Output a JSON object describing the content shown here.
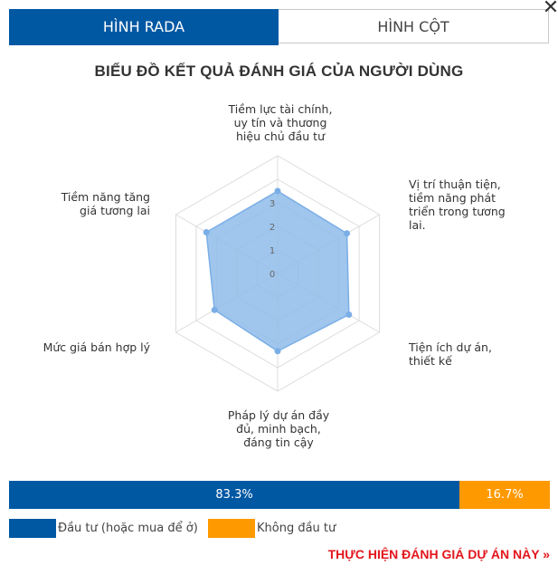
{
  "tabs": [
    {
      "label": "HÌNH RADA",
      "active": true
    },
    {
      "label": "HÌNH CỘT",
      "active": false
    }
  ],
  "close_icon": "close-icon",
  "chart_title": "BIỂU ĐỒ KẾT QUẢ ĐÁNH GIÁ CỦA NGƯỜI DÙNG",
  "chart_data": {
    "type": "radar",
    "title": "BIỂU ĐỒ KẾT QUẢ ĐÁNH GIÁ CỦA NGƯỜI DÙNG",
    "categories": [
      "Tiềm lực tài chính, uy tín và thương hiệu chủ đầu tư",
      "Vị trí thuận tiện, tiềm năng phát triển trong tương lai.",
      "Tiện ích dự án, thiết kế",
      "Pháp lý dự án đầy đủ, minh bạch, đáng tin cậy",
      "Mức giá bán hợp lý",
      "Tiềm năng tăng giá tương lai"
    ],
    "values": [
      3.5,
      3.4,
      3.5,
      3.3,
      3.1,
      3.5
    ],
    "scale_ticks": [
      "0",
      "1",
      "2",
      "3"
    ],
    "rmin": 0,
    "rmax": 5,
    "grid": true,
    "colors": {
      "fill": "#8fbcea",
      "line": "#7aaee6",
      "point": "#7aaee6",
      "grid": "#dcdcdc"
    }
  },
  "summary_bar": {
    "segments": [
      {
        "label": "83.3%",
        "value": 83.3,
        "color": "#0058a3"
      },
      {
        "label": "16.7%",
        "value": 16.7,
        "color": "#ff9900"
      }
    ]
  },
  "legend": [
    {
      "label": "Đầu tư (hoặc mua để ở)",
      "color": "#0058a3"
    },
    {
      "label": "Không đầu tư",
      "color": "#ff9900"
    }
  ],
  "cta_label": "THỰC HIỆN ĐÁNH GIÁ DỰ ÁN NÀY »"
}
